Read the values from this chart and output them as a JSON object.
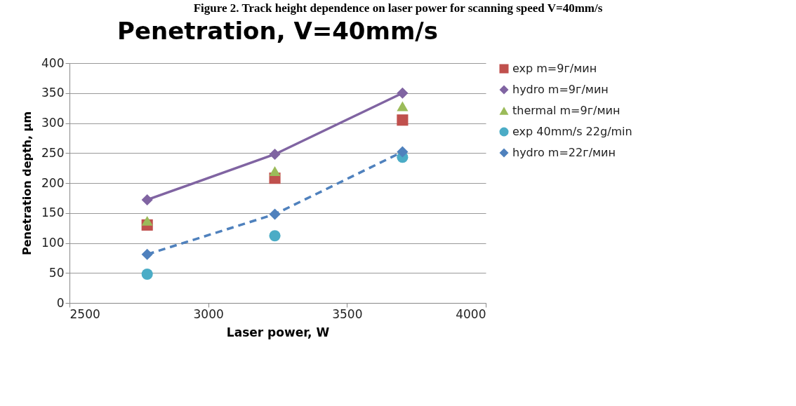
{
  "chart_data": {
    "type": "scatter",
    "title": "Penetration, V=40mm/s",
    "xlabel": "Laser power, W",
    "ylabel": "Penetration depth, µm",
    "annotations": [
      "Figure 2. Track height dependence on laser power for scanning speed V=40mm/s"
    ],
    "x": [
      2780,
      3240,
      3700
    ],
    "series": [
      {
        "name": "exp m=9г/мин",
        "type": "scatter",
        "marker": "square",
        "color": "#c0504d",
        "values": [
          130,
          208,
          305
        ]
      },
      {
        "name": "hydro m=9г/мин",
        "type": "line",
        "marker": "diamond",
        "line_style": "solid",
        "color": "#8064a2",
        "values": [
          172,
          248,
          350
        ]
      },
      {
        "name": "thermal m=9г/мин",
        "type": "scatter",
        "marker": "triangle",
        "color": "#9bbb59",
        "values": [
          137,
          220,
          328
        ]
      },
      {
        "name": "exp 40mm/s 22g/min",
        "type": "scatter",
        "marker": "circle",
        "color": "#4bacc6",
        "values": [
          48,
          112,
          243
        ]
      },
      {
        "name": "hydro m=22г/мин",
        "type": "line",
        "marker": "diamond",
        "line_style": "dashed",
        "color": "#4f81bd",
        "values": [
          81,
          148,
          252
        ]
      }
    ],
    "xlim": [
      2500,
      4000
    ],
    "xticks": [
      2500,
      3000,
      3500,
      4000
    ],
    "ylim": [
      0,
      400
    ],
    "yticks": [
      0,
      50,
      100,
      150,
      200,
      250,
      300,
      350,
      400
    ],
    "grid": "y",
    "legend": "right"
  }
}
